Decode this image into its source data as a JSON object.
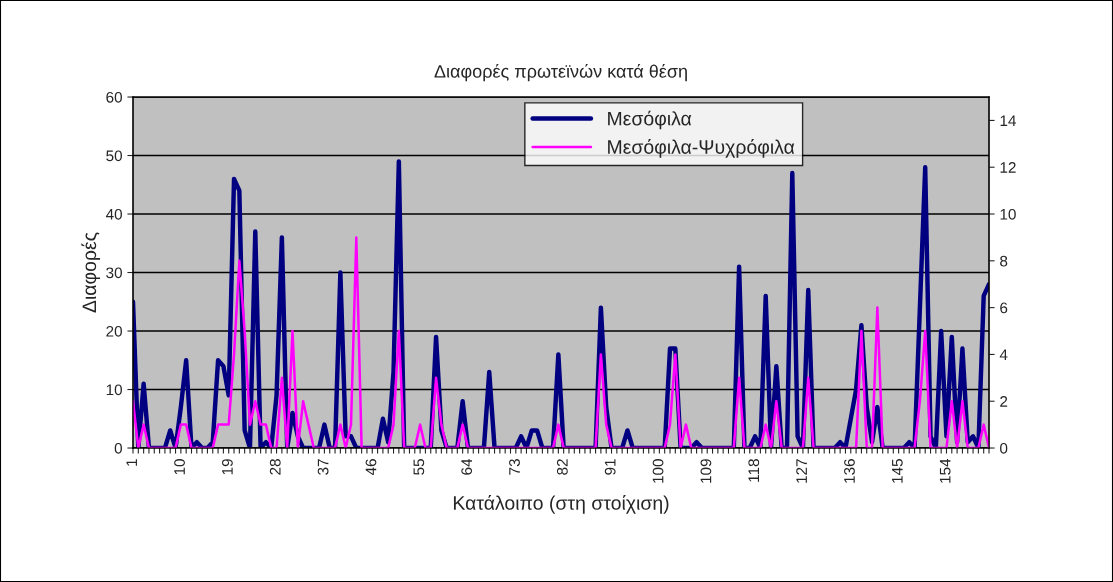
{
  "chart_data": {
    "type": "line",
    "title": "Διαφορές πρωτεϊνών κατά θέση",
    "xlabel": "Κατάλοιπο (στη στοίχιση)",
    "ylabel": "Διαφορές",
    "categories": [
      "1",
      null,
      null,
      null,
      null,
      null,
      null,
      null,
      null,
      "10",
      null,
      null,
      null,
      null,
      null,
      null,
      null,
      null,
      "19",
      null,
      null,
      null,
      null,
      null,
      null,
      null,
      null,
      "28",
      null,
      null,
      null,
      null,
      null,
      null,
      null,
      null,
      "37",
      null,
      null,
      null,
      null,
      null,
      null,
      null,
      null,
      "46",
      null,
      null,
      null,
      null,
      null,
      null,
      null,
      null,
      "55",
      null,
      null,
      null,
      null,
      null,
      null,
      null,
      null,
      "64",
      null,
      null,
      null,
      null,
      null,
      null,
      null,
      null,
      "73",
      null,
      null,
      null,
      null,
      null,
      null,
      null,
      null,
      "82",
      null,
      null,
      null,
      null,
      null,
      null,
      null,
      null,
      "91",
      null,
      null,
      null,
      null,
      null,
      null,
      null,
      null,
      "100",
      null,
      null,
      null,
      null,
      null,
      null,
      null,
      null,
      "109",
      null,
      null,
      null,
      null,
      null,
      null,
      null,
      null,
      "118",
      null,
      null,
      null,
      null,
      null,
      null,
      null,
      null,
      "127",
      null,
      null,
      null,
      null,
      null,
      null,
      null,
      null,
      "136",
      null,
      null,
      null,
      null,
      null,
      null,
      null,
      null,
      "145",
      null,
      null,
      null,
      null,
      null,
      null,
      null,
      null,
      "154",
      null,
      null,
      null,
      null,
      null,
      null,
      null,
      null
    ],
    "series": [
      {
        "name": "Μεσόφιλα",
        "color": "#000080",
        "values": [
          25,
          0,
          11,
          0,
          0,
          0,
          0,
          3,
          0,
          7,
          15,
          0,
          1,
          0,
          0,
          1,
          15,
          14,
          9,
          46,
          44,
          3,
          0,
          37,
          0,
          1,
          0,
          9,
          36,
          0,
          6,
          2,
          0,
          0,
          0,
          0,
          4,
          0,
          0,
          30,
          2,
          2,
          0,
          0,
          0,
          0,
          0,
          5,
          1,
          13,
          49,
          0,
          0,
          0,
          0,
          0,
          0,
          19,
          3,
          0,
          0,
          0,
          8,
          0,
          0,
          0,
          0,
          13,
          0,
          0,
          0,
          0,
          0,
          2,
          0,
          3,
          3,
          0,
          0,
          0,
          16,
          0,
          0,
          0,
          0,
          0,
          0,
          0,
          24,
          7,
          0,
          0,
          0,
          3,
          0,
          0,
          0,
          0,
          0,
          0,
          0,
          17,
          17,
          0,
          0,
          0,
          1,
          0,
          0,
          0,
          0,
          0,
          0,
          0,
          31,
          0,
          0,
          2,
          0,
          26,
          0,
          14,
          0,
          0,
          47,
          2,
          0,
          27,
          0,
          0,
          0,
          0,
          0,
          1,
          0,
          5,
          10,
          21,
          7,
          1,
          7,
          0,
          0,
          0,
          0,
          0,
          1,
          0,
          24,
          48,
          2,
          0,
          20,
          2,
          19,
          1,
          17,
          1,
          2,
          0,
          26,
          28
        ]
      },
      {
        "name": "Μεσόφιλα-Ψυχρόφιλα",
        "color": "#ff00ff",
        "axis": "y2",
        "values": [
          2,
          0,
          1,
          0,
          0,
          0,
          0,
          0,
          0,
          1,
          1,
          0,
          0,
          0,
          0,
          0,
          1,
          1,
          1,
          4,
          8,
          5,
          1,
          2,
          1,
          1,
          0,
          0,
          3,
          0,
          5,
          0,
          2,
          1,
          0,
          0,
          0,
          0,
          0,
          1,
          0,
          1,
          9,
          0,
          0,
          0,
          0,
          0,
          0,
          1,
          5,
          0,
          0,
          0,
          1,
          0,
          0,
          3,
          1,
          0,
          0,
          0,
          1,
          0,
          0,
          0,
          0,
          0,
          0,
          0,
          0,
          0,
          0,
          0,
          0,
          0,
          0,
          0,
          0,
          0,
          1,
          0,
          0,
          0,
          0,
          0,
          0,
          0,
          4,
          1,
          0,
          0,
          0,
          0,
          0,
          0,
          0,
          0,
          0,
          0,
          0,
          1,
          4,
          0,
          1,
          0,
          0,
          0,
          0,
          0,
          0,
          0,
          0,
          0,
          3,
          0,
          0,
          0,
          0,
          1,
          0,
          2,
          0,
          0,
          0,
          0,
          0,
          3,
          0,
          0,
          0,
          0,
          0,
          0,
          0,
          0,
          0,
          5,
          0,
          0,
          6,
          0,
          0,
          0,
          0,
          0,
          0,
          0,
          2,
          5,
          0,
          0,
          0,
          0,
          2,
          0,
          2,
          0,
          0,
          0,
          1,
          0
        ]
      }
    ],
    "ylim": [
      0,
      60
    ],
    "yticks": [
      0,
      10,
      20,
      30,
      40,
      50,
      60
    ],
    "y2lim": [
      0,
      15
    ],
    "y2ticks": [
      0,
      2,
      4,
      6,
      8,
      10,
      12,
      14
    ],
    "grid": "y",
    "legend": "top",
    "marker": "none",
    "line_style": "solid"
  }
}
